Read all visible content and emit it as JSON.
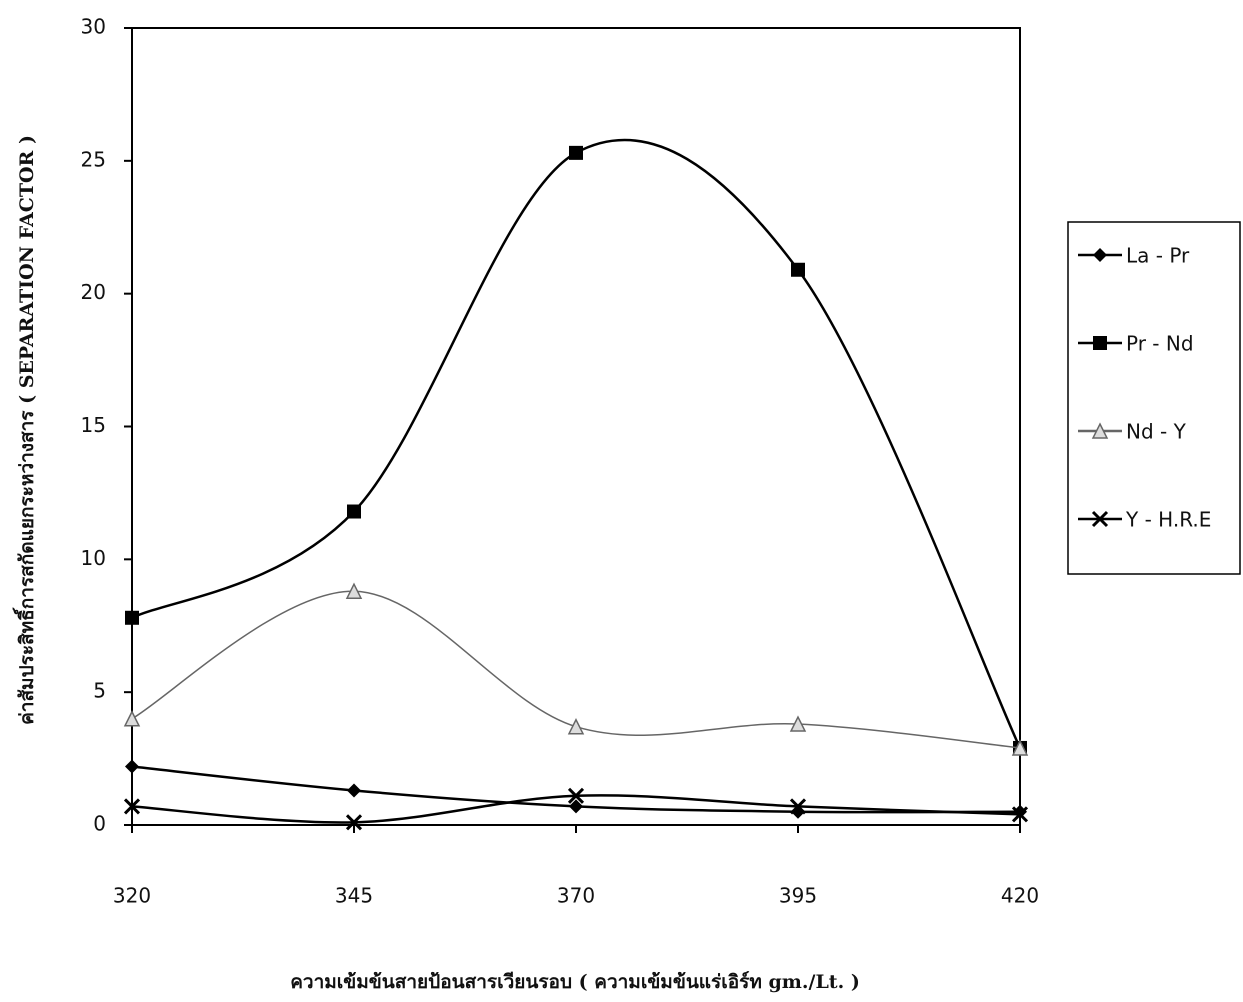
{
  "chart_data": {
    "type": "line",
    "x_label": "ความเข้มข้นสายป้อนสารเวียนรอบ ( ความเข้มข้นแร่เอิร์ท gm./Lt. )",
    "y_label": "ค่าสัมประสิทธิ์การสกัดแยกระหว่างสาร ( SEPARATION FACTOR )",
    "x": [
      320,
      345,
      370,
      395,
      420
    ],
    "xlim": [
      320,
      420
    ],
    "xticks": [
      320,
      345,
      370,
      395,
      420
    ],
    "ylim": [
      0,
      30
    ],
    "yticks": [
      0,
      5,
      10,
      15,
      20,
      25,
      30
    ],
    "smooth": true,
    "legend": "right",
    "series": [
      {
        "name": "La - Pr",
        "color": "#000000",
        "marker": "diamond",
        "values": [
          2.2,
          1.3,
          0.7,
          0.5,
          0.5
        ]
      },
      {
        "name": "Pr - Nd",
        "color": "#000000",
        "marker": "square",
        "values": [
          7.8,
          11.8,
          25.3,
          20.9,
          2.9
        ]
      },
      {
        "name": "Nd - Y",
        "color": "#666666",
        "marker": "triangle",
        "values": [
          4.0,
          8.8,
          3.7,
          3.8,
          2.9
        ]
      },
      {
        "name": "Y - H.R.E",
        "color": "#000000",
        "marker": "x",
        "values": [
          0.7,
          0.1,
          1.1,
          0.7,
          0.4
        ]
      }
    ]
  }
}
